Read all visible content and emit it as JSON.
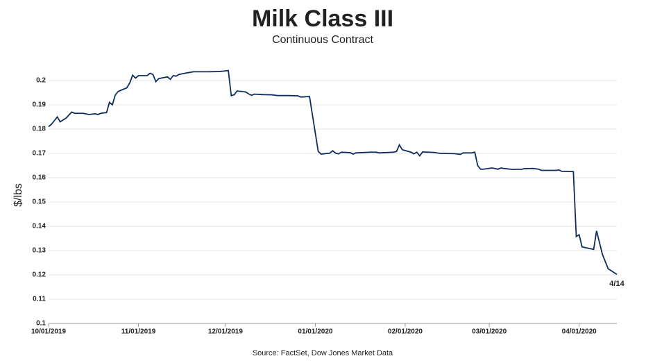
{
  "chart_data": {
    "type": "line",
    "title": "Milk Class III",
    "subtitle": "Continuous Contract",
    "y_label": "$/lbs",
    "source": "Source: FactSet, Dow Jones Market Data",
    "annotation": "4/14",
    "x": [
      "2019-10-01",
      "2019-10-02",
      "2019-10-03",
      "2019-10-04",
      "2019-10-05",
      "2019-10-07",
      "2019-10-09",
      "2019-10-10",
      "2019-10-13",
      "2019-10-15",
      "2019-10-17",
      "2019-10-18",
      "2019-10-19",
      "2019-10-21",
      "2019-10-22",
      "2019-10-23",
      "2019-10-24",
      "2019-10-25",
      "2019-10-28",
      "2019-10-29",
      "2019-10-30",
      "2019-10-31",
      "2019-11-01",
      "2019-11-04",
      "2019-11-05",
      "2019-11-06",
      "2019-11-07",
      "2019-11-08",
      "2019-11-11",
      "2019-11-12",
      "2019-11-13",
      "2019-11-14",
      "2019-11-15",
      "2019-11-18",
      "2019-11-20",
      "2019-11-25",
      "2019-11-29",
      "2019-12-02",
      "2019-12-03",
      "2019-12-04",
      "2019-12-05",
      "2019-12-08",
      "2019-12-09",
      "2019-12-10",
      "2019-12-11",
      "2019-12-14",
      "2019-12-17",
      "2019-12-19",
      "2019-12-23",
      "2019-12-26",
      "2019-12-27",
      "2019-12-30",
      "2020-01-02",
      "2020-01-03",
      "2020-01-06",
      "2020-01-07",
      "2020-01-08",
      "2020-01-09",
      "2020-01-10",
      "2020-01-13",
      "2020-01-14",
      "2020-01-15",
      "2020-01-20",
      "2020-01-22",
      "2020-01-23",
      "2020-01-28",
      "2020-01-29",
      "2020-01-30",
      "2020-01-31",
      "2020-02-03",
      "2020-02-04",
      "2020-02-05",
      "2020-02-06",
      "2020-02-07",
      "2020-02-11",
      "2020-02-13",
      "2020-02-18",
      "2020-02-20",
      "2020-02-21",
      "2020-02-24",
      "2020-02-25",
      "2020-02-26",
      "2020-02-27",
      "2020-02-28",
      "2020-03-02",
      "2020-03-04",
      "2020-03-05",
      "2020-03-06",
      "2020-03-09",
      "2020-03-11",
      "2020-03-12",
      "2020-03-13",
      "2020-03-16",
      "2020-03-18",
      "2020-03-19",
      "2020-03-24",
      "2020-03-25",
      "2020-03-26",
      "2020-03-30",
      "2020-03-31",
      "2020-04-01",
      "2020-04-02",
      "2020-04-06",
      "2020-04-07",
      "2020-04-09",
      "2020-04-11",
      "2020-04-14"
    ],
    "series": [
      {
        "name": "Milk Class III",
        "color": "#0d2d5e",
        "values": [
          0.181,
          0.182,
          0.1835,
          0.185,
          0.183,
          0.1845,
          0.187,
          0.1865,
          0.1865,
          0.186,
          0.1863,
          0.186,
          0.1865,
          0.1868,
          0.191,
          0.19,
          0.194,
          0.1955,
          0.197,
          0.199,
          0.2022,
          0.201,
          0.202,
          0.202,
          0.203,
          0.2025,
          0.1995,
          0.2008,
          0.2015,
          0.2005,
          0.202,
          0.2018,
          0.2025,
          0.2032,
          0.2036,
          0.2036,
          0.2037,
          0.2041,
          0.1938,
          0.1941,
          0.1957,
          0.1953,
          0.1945,
          0.1939,
          0.1944,
          0.1942,
          0.1941,
          0.1938,
          0.1938,
          0.1937,
          0.1932,
          0.1934,
          0.1708,
          0.1697,
          0.1701,
          0.1711,
          0.1701,
          0.1698,
          0.1705,
          0.1703,
          0.1697,
          0.1702,
          0.1705,
          0.1705,
          0.1702,
          0.1705,
          0.1708,
          0.1735,
          0.1715,
          0.1705,
          0.1698,
          0.1705,
          0.169,
          0.1706,
          0.1704,
          0.17,
          0.1699,
          0.1696,
          0.1702,
          0.1702,
          0.1705,
          0.165,
          0.1635,
          0.1635,
          0.164,
          0.1635,
          0.164,
          0.1638,
          0.1634,
          0.1635,
          0.1634,
          0.1637,
          0.1638,
          0.1635,
          0.163,
          0.163,
          0.1632,
          0.1626,
          0.1625,
          0.1358,
          0.1365,
          0.1315,
          0.1305,
          0.1381,
          0.1285,
          0.1225,
          0.1202
        ]
      }
    ],
    "xlim": [
      "2019-10-01",
      "2020-04-14"
    ],
    "xticks": [
      {
        "value": "2019-10-01",
        "label": "10/01/2019"
      },
      {
        "value": "2019-11-01",
        "label": "11/01/2019"
      },
      {
        "value": "2019-12-01",
        "label": "12/01/2019"
      },
      {
        "value": "2020-01-01",
        "label": "01/01/2020"
      },
      {
        "value": "2020-02-01",
        "label": "02/01/2020"
      },
      {
        "value": "2020-03-01",
        "label": "03/01/2020"
      },
      {
        "value": "2020-04-01",
        "label": "04/01/2020"
      }
    ],
    "ylim": [
      0.1,
      0.206
    ],
    "yticks": [
      0.1,
      0.11,
      0.12,
      0.13,
      0.14,
      0.15,
      0.16,
      0.17,
      0.18,
      0.19,
      0.2
    ],
    "grid": true
  }
}
